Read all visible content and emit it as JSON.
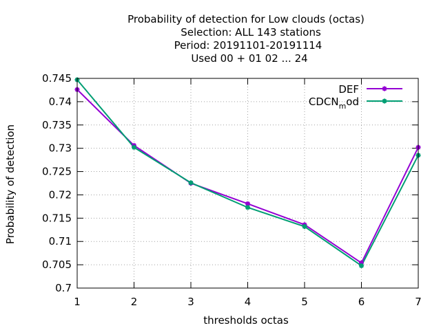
{
  "chart_data": {
    "type": "line",
    "title_lines": [
      "Probability of detection  for Low clouds (octas)",
      "Selection: ALL    143 stations",
      "Period: 20191101-20191114",
      "Used  00 + 01 02 ... 24"
    ],
    "xlabel": "thresholds octas",
    "ylabel": "Probability of detection",
    "x": [
      1,
      2,
      3,
      4,
      5,
      6,
      7
    ],
    "xlim": [
      1,
      7
    ],
    "ylim": [
      0.7,
      0.745
    ],
    "xticks": [
      "1",
      "2",
      "3",
      "4",
      "5",
      "6",
      "7"
    ],
    "yticks": [
      0.7,
      0.705,
      0.71,
      0.715,
      0.72,
      0.725,
      0.73,
      0.735,
      0.74,
      0.745
    ],
    "ytick_labels": [
      "0.7",
      "0.705",
      "0.71",
      "0.715",
      "0.72",
      "0.725",
      "0.73",
      "0.735",
      "0.74",
      "0.745"
    ],
    "grid": true,
    "legend_position": "top-right",
    "series": [
      {
        "name": "DEF",
        "color": "#9400d3",
        "values": [
          0.7426,
          0.7306,
          0.7225,
          0.7181,
          0.7136,
          0.7054,
          0.7302
        ]
      },
      {
        "name_parts": [
          "CDCN",
          "m",
          "od"
        ],
        "color": "#009e73",
        "values": [
          0.7447,
          0.7302,
          0.7226,
          0.7173,
          0.7132,
          0.7048,
          0.7285
        ]
      }
    ]
  }
}
